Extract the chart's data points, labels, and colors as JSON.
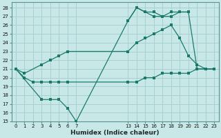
{
  "background_color": "#c8e8e8",
  "grid_color": "#a8d0d0",
  "line_color": "#1a7a6a",
  "xlabel": "Humidex (Indice chaleur)",
  "xlim": [
    -0.5,
    23.5
  ],
  "ylim": [
    15,
    28.6
  ],
  "xticks": [
    0,
    1,
    2,
    3,
    4,
    5,
    6,
    7,
    13,
    14,
    15,
    16,
    17,
    18,
    19,
    20,
    21,
    22,
    23
  ],
  "yticks": [
    15,
    16,
    17,
    18,
    19,
    20,
    21,
    22,
    23,
    24,
    25,
    26,
    27,
    28
  ],
  "lines": [
    {
      "x": [
        0,
        1,
        2,
        3,
        4,
        5,
        6,
        13,
        14,
        15,
        16,
        17,
        18,
        19,
        20,
        21,
        22,
        23
      ],
      "y": [
        21.0,
        20.0,
        19.5,
        19.5,
        19.5,
        19.5,
        19.5,
        19.5,
        19.5,
        20.0,
        20.0,
        20.5,
        20.5,
        20.5,
        20.5,
        21.0,
        21.0,
        21.0
      ]
    },
    {
      "x": [
        0,
        1,
        3,
        4,
        5,
        6,
        13,
        14,
        15,
        16,
        17,
        18,
        19,
        20,
        21,
        22,
        23
      ],
      "y": [
        21.0,
        20.5,
        21.5,
        22.0,
        22.5,
        23.0,
        23.0,
        24.0,
        24.5,
        25.0,
        25.5,
        26.0,
        24.5,
        22.5,
        21.5,
        21.0,
        21.0
      ]
    },
    {
      "x": [
        0,
        3,
        4,
        5,
        6,
        7,
        13,
        14,
        15,
        16,
        17,
        18,
        19,
        20,
        21,
        22,
        23
      ],
      "y": [
        21.0,
        17.5,
        17.5,
        17.5,
        16.5,
        15.0,
        26.5,
        28.0,
        27.5,
        27.5,
        27.0,
        27.0,
        27.5,
        27.5,
        21.0,
        21.0,
        21.0
      ]
    },
    {
      "x": [
        13,
        14,
        15,
        16,
        17,
        18,
        19,
        20
      ],
      "y": [
        26.5,
        28.0,
        27.5,
        27.0,
        27.0,
        27.5,
        27.5,
        27.5
      ]
    }
  ]
}
